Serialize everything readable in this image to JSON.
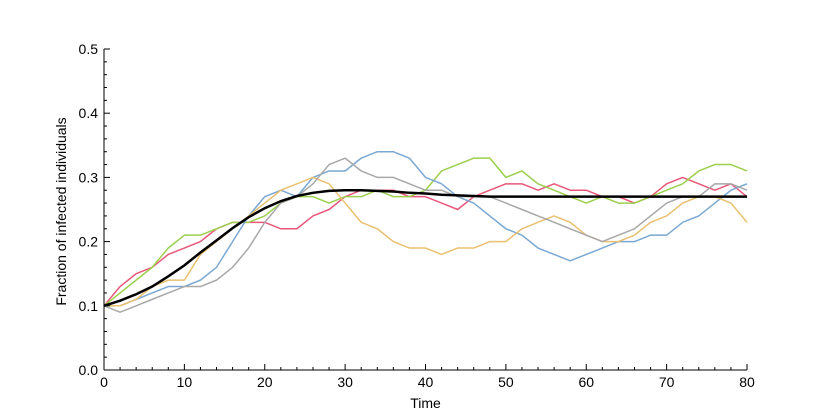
{
  "chart_data": {
    "type": "line",
    "title": "",
    "xlabel": "Time",
    "ylabel": "Fraction of infected individuals",
    "xlim": [
      0,
      80
    ],
    "ylim": [
      0,
      0.5
    ],
    "xticks": [
      0,
      10,
      20,
      30,
      40,
      50,
      60,
      70,
      80
    ],
    "xtick_labels": [
      "0",
      "10",
      "20",
      "30",
      "40",
      "50",
      "60",
      "70",
      "80"
    ],
    "yticks": [
      0,
      0.1,
      0.2,
      0.3,
      0.4,
      0.5
    ],
    "ytick_labels": [
      "0.0",
      "0.1",
      "0.2",
      "0.3",
      "0.4",
      "0.5"
    ],
    "grid": false,
    "legend": "none",
    "series": [
      {
        "color": "#e8577a",
        "x": [
          0,
          2,
          4,
          6,
          8,
          10,
          12,
          14,
          16,
          18,
          20,
          22,
          24,
          26,
          28,
          30,
          32,
          34,
          36,
          38,
          40,
          42,
          44,
          46,
          48,
          50,
          52,
          54,
          56,
          58,
          60,
          62,
          64,
          66,
          68,
          70,
          72,
          74,
          76,
          78,
          80
        ],
        "y": [
          0.1,
          0.13,
          0.15,
          0.16,
          0.18,
          0.19,
          0.2,
          0.22,
          0.23,
          0.23,
          0.23,
          0.22,
          0.22,
          0.24,
          0.25,
          0.27,
          0.28,
          0.28,
          0.28,
          0.27,
          0.27,
          0.26,
          0.25,
          0.27,
          0.28,
          0.29,
          0.29,
          0.28,
          0.29,
          0.28,
          0.28,
          0.27,
          0.27,
          0.26,
          0.27,
          0.29,
          0.3,
          0.29,
          0.28,
          0.29,
          0.27
        ]
      },
      {
        "color": "#9bcf4c",
        "x": [
          0,
          2,
          4,
          6,
          8,
          10,
          12,
          14,
          16,
          18,
          20,
          22,
          24,
          26,
          28,
          30,
          32,
          34,
          36,
          38,
          40,
          42,
          44,
          46,
          48,
          50,
          52,
          54,
          56,
          58,
          60,
          62,
          64,
          66,
          68,
          70,
          72,
          74,
          76,
          78,
          80
        ],
        "y": [
          0.1,
          0.12,
          0.14,
          0.16,
          0.19,
          0.21,
          0.21,
          0.22,
          0.23,
          0.23,
          0.24,
          0.26,
          0.27,
          0.27,
          0.26,
          0.27,
          0.27,
          0.28,
          0.27,
          0.27,
          0.28,
          0.31,
          0.32,
          0.33,
          0.33,
          0.3,
          0.31,
          0.29,
          0.28,
          0.27,
          0.26,
          0.27,
          0.26,
          0.26,
          0.27,
          0.28,
          0.29,
          0.31,
          0.32,
          0.32,
          0.31
        ]
      },
      {
        "color": "#7aa8d2",
        "x": [
          0,
          2,
          4,
          6,
          8,
          10,
          12,
          14,
          16,
          18,
          20,
          22,
          24,
          26,
          28,
          30,
          32,
          34,
          36,
          38,
          40,
          42,
          44,
          46,
          48,
          50,
          52,
          54,
          56,
          58,
          60,
          62,
          64,
          66,
          68,
          70,
          72,
          74,
          76,
          78,
          80
        ],
        "y": [
          0.1,
          0.1,
          0.11,
          0.12,
          0.13,
          0.13,
          0.14,
          0.16,
          0.2,
          0.24,
          0.27,
          0.28,
          0.27,
          0.3,
          0.31,
          0.31,
          0.33,
          0.34,
          0.34,
          0.33,
          0.3,
          0.29,
          0.27,
          0.26,
          0.24,
          0.22,
          0.21,
          0.19,
          0.18,
          0.17,
          0.18,
          0.19,
          0.2,
          0.2,
          0.21,
          0.21,
          0.23,
          0.24,
          0.26,
          0.28,
          0.29
        ]
      },
      {
        "color": "#e8c070",
        "x": [
          0,
          2,
          4,
          6,
          8,
          10,
          12,
          14,
          16,
          18,
          20,
          22,
          24,
          26,
          28,
          30,
          32,
          34,
          36,
          38,
          40,
          42,
          44,
          46,
          48,
          50,
          52,
          54,
          56,
          58,
          60,
          62,
          64,
          66,
          68,
          70,
          72,
          74,
          76,
          78,
          80
        ],
        "y": [
          0.1,
          0.1,
          0.11,
          0.13,
          0.14,
          0.14,
          0.18,
          0.2,
          0.22,
          0.24,
          0.26,
          0.28,
          0.29,
          0.3,
          0.29,
          0.26,
          0.23,
          0.22,
          0.2,
          0.19,
          0.19,
          0.18,
          0.19,
          0.19,
          0.2,
          0.2,
          0.22,
          0.23,
          0.24,
          0.23,
          0.21,
          0.2,
          0.2,
          0.21,
          0.23,
          0.24,
          0.26,
          0.27,
          0.27,
          0.26,
          0.23
        ]
      },
      {
        "color": "#a8a8a8",
        "x": [
          0,
          2,
          4,
          6,
          8,
          10,
          12,
          14,
          16,
          18,
          20,
          22,
          24,
          26,
          28,
          30,
          32,
          34,
          36,
          38,
          40,
          42,
          44,
          46,
          48,
          50,
          52,
          54,
          56,
          58,
          60,
          62,
          64,
          66,
          68,
          70,
          72,
          74,
          76,
          78,
          80
        ],
        "y": [
          0.1,
          0.09,
          0.1,
          0.11,
          0.12,
          0.13,
          0.13,
          0.14,
          0.16,
          0.19,
          0.23,
          0.26,
          0.27,
          0.29,
          0.32,
          0.33,
          0.31,
          0.3,
          0.3,
          0.29,
          0.28,
          0.28,
          0.27,
          0.27,
          0.27,
          0.26,
          0.25,
          0.24,
          0.23,
          0.22,
          0.21,
          0.2,
          0.21,
          0.22,
          0.24,
          0.26,
          0.27,
          0.27,
          0.29,
          0.29,
          0.28
        ]
      },
      {
        "color": "#000000",
        "x": [
          0,
          2,
          4,
          6,
          8,
          10,
          12,
          14,
          16,
          18,
          20,
          22,
          24,
          26,
          28,
          30,
          32,
          34,
          36,
          38,
          40,
          42,
          44,
          46,
          48,
          50,
          52,
          54,
          56,
          58,
          60,
          62,
          64,
          66,
          68,
          70,
          72,
          74,
          76,
          78,
          80
        ],
        "y": [
          0.1,
          0.108,
          0.118,
          0.13,
          0.146,
          0.163,
          0.183,
          0.202,
          0.221,
          0.238,
          0.252,
          0.263,
          0.271,
          0.276,
          0.279,
          0.28,
          0.28,
          0.279,
          0.278,
          0.276,
          0.275,
          0.273,
          0.272,
          0.271,
          0.27,
          0.27,
          0.27,
          0.27,
          0.27,
          0.27,
          0.27,
          0.27,
          0.27,
          0.27,
          0.27,
          0.27,
          0.27,
          0.27,
          0.27,
          0.27,
          0.27
        ]
      }
    ]
  }
}
